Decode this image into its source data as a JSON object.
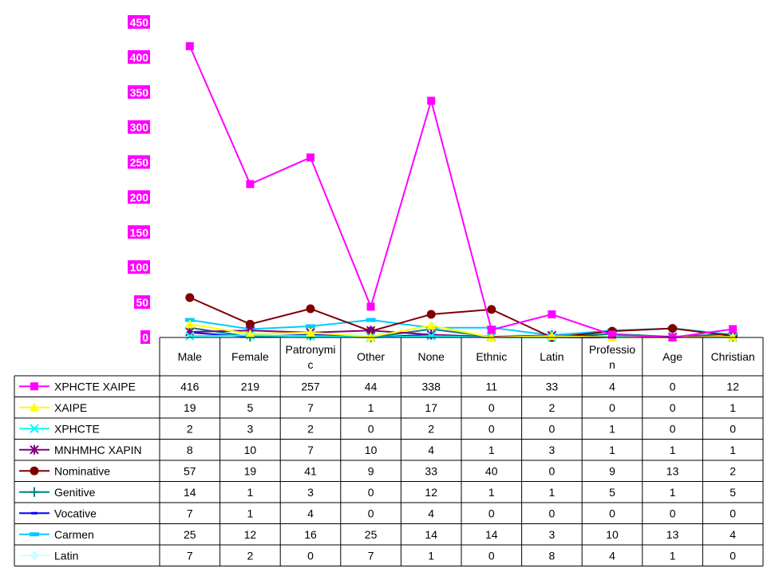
{
  "chart_data": {
    "type": "line",
    "categories": [
      "Male",
      "Female",
      "Patronymic",
      "Other",
      "None",
      "Ethnic",
      "Latin",
      "Profession",
      "Age",
      "Christian"
    ],
    "category_lines": [
      [
        "Male"
      ],
      [
        "Female"
      ],
      [
        "Patronymi",
        "c"
      ],
      [
        "Other"
      ],
      [
        "None"
      ],
      [
        "Ethnic"
      ],
      [
        "Latin"
      ],
      [
        "Professio",
        "n"
      ],
      [
        "Age"
      ],
      [
        "Christian"
      ]
    ],
    "ylim": [
      0,
      450
    ],
    "yticks": [
      "0",
      "50",
      "100",
      "150",
      "200",
      "250",
      "300",
      "350",
      "400",
      "450"
    ],
    "grid": false,
    "legend": "data-table-below",
    "series": [
      {
        "name": "XPHCTE XAIPE",
        "values": [
          416,
          219,
          257,
          44,
          338,
          11,
          33,
          4,
          0,
          12
        ],
        "color": "#ff00ff",
        "marker": "square"
      },
      {
        "name": "XAIPE",
        "values": [
          19,
          5,
          7,
          1,
          17,
          0,
          2,
          0,
          0,
          1
        ],
        "color": "#ffff00",
        "marker": "triangle"
      },
      {
        "name": "XPHCTE",
        "values": [
          2,
          3,
          2,
          0,
          2,
          0,
          0,
          1,
          0,
          0
        ],
        "color": "#00ffff",
        "marker": "x"
      },
      {
        "name": "MNHMHC XAPIN",
        "values": [
          8,
          10,
          7,
          10,
          4,
          1,
          3,
          1,
          1,
          1
        ],
        "color": "#800080",
        "marker": "star"
      },
      {
        "name": "Nominative",
        "values": [
          57,
          19,
          41,
          9,
          33,
          40,
          0,
          9,
          13,
          2
        ],
        "color": "#800000",
        "marker": "circle"
      },
      {
        "name": "Genitive",
        "values": [
          14,
          1,
          3,
          0,
          12,
          1,
          1,
          5,
          1,
          5
        ],
        "color": "#008080",
        "marker": "plus"
      },
      {
        "name": "Vocative",
        "values": [
          7,
          1,
          4,
          0,
          4,
          0,
          0,
          0,
          0,
          0
        ],
        "color": "#0000ff",
        "marker": "dash"
      },
      {
        "name": "Carmen",
        "values": [
          25,
          12,
          16,
          25,
          14,
          14,
          3,
          10,
          13,
          4
        ],
        "color": "#00ccff",
        "marker": "bar"
      },
      {
        "name": "Latin",
        "values": [
          7,
          2,
          0,
          7,
          1,
          0,
          8,
          4,
          1,
          0
        ],
        "color": "#ccffff",
        "marker": "diamond"
      }
    ]
  },
  "colors": {
    "axis_label_background": "#ff00ff",
    "table_border": "#000000"
  }
}
